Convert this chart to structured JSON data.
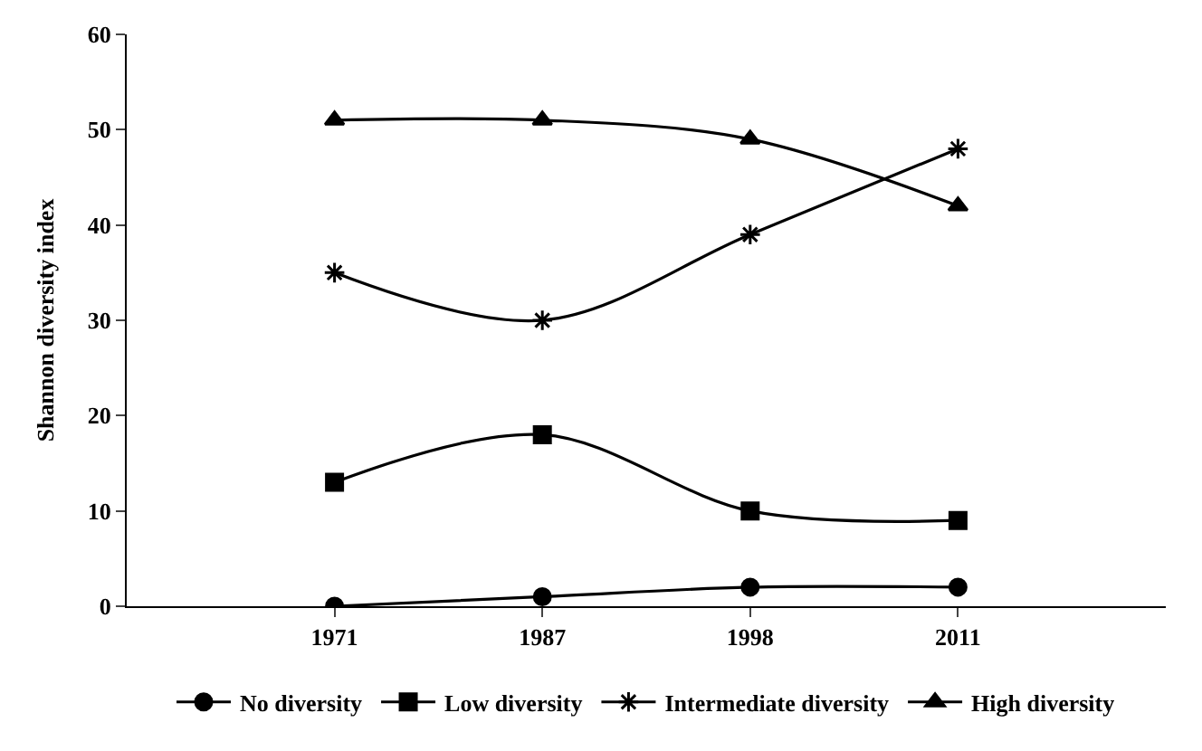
{
  "chart_data": {
    "type": "line",
    "ylabel": "Shannon diversity index",
    "categories": [
      "1971",
      "1987",
      "1998",
      "2011"
    ],
    "ylim": [
      0,
      60
    ],
    "yticks": [
      0,
      10,
      20,
      30,
      40,
      50,
      60
    ],
    "legend": "bottom",
    "line_style": "solid",
    "series": [
      {
        "name": "No diversity",
        "color": "#000000",
        "marker": "circle",
        "values": [
          0,
          1,
          2,
          2
        ]
      },
      {
        "name": "Low diversity",
        "color": "#000000",
        "marker": "square",
        "values": [
          13,
          18,
          10,
          9
        ]
      },
      {
        "name": "Intermediate diversity",
        "color": "#000000",
        "marker": "cross",
        "values": [
          35,
          30,
          39,
          48
        ]
      },
      {
        "name": "High diversity",
        "color": "#000000",
        "marker": "triangle",
        "values": [
          51,
          51,
          49,
          42
        ]
      }
    ]
  }
}
